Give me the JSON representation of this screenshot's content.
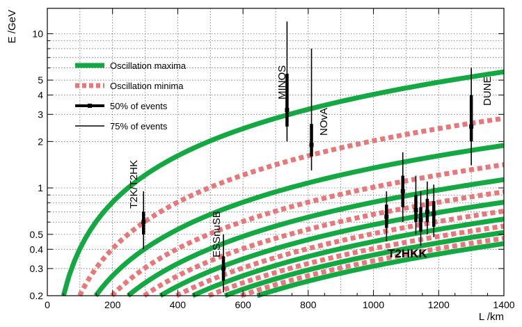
{
  "chart_data": {
    "type": "line",
    "xlabel": "L /km",
    "ylabel": "E /GeV",
    "xlim": [
      0,
      1400
    ],
    "ylim": [
      0.2,
      15
    ],
    "yscale": "log",
    "grid": true,
    "legend_position": "top-left",
    "x_ticks": [
      "0",
      "200",
      "400",
      "600",
      "800",
      "1000",
      "1200",
      "1400"
    ],
    "y_ticks": [
      "0.2",
      "0.3",
      "0.4",
      "0.5",
      "1",
      "2",
      "3",
      "4",
      "5",
      "10"
    ],
    "colors": {
      "maxima": "#14a843",
      "minima": "#e8777a",
      "events": "#000000"
    },
    "series": [
      {
        "name": "Oscillation maxima",
        "kind": "maxima",
        "style": "solid",
        "formula": "E = 2.538 * 0.0025 * L / ((2n-1) * pi/2)",
        "n": [
          1,
          2,
          3,
          4,
          5,
          6,
          7
        ]
      },
      {
        "name": "Oscillation minima",
        "kind": "minima",
        "style": "dotted",
        "formula": "E = 2.538 * 0.0025 * L / (n * pi)",
        "n": [
          1,
          2,
          3,
          4,
          5,
          6
        ]
      }
    ],
    "legend": [
      {
        "label": "Oscillation maxima",
        "kind": "maxima"
      },
      {
        "label": "Oscillation minima",
        "kind": "minima"
      },
      {
        "label": "50% of events",
        "kind": "thick"
      },
      {
        "label": "75% of events",
        "kind": "thin"
      }
    ],
    "experiments": [
      {
        "name": "T2K/T2HK",
        "L": 295,
        "center": 0.6,
        "e50": [
          0.5,
          0.7
        ],
        "e75": [
          0.4,
          0.95
        ]
      },
      {
        "name": "ESSnuSB",
        "L": 540,
        "center": 0.3,
        "e50": [
          0.25,
          0.36
        ],
        "e75": [
          0.21,
          0.5
        ]
      },
      {
        "name": "MINOS",
        "L": 735,
        "center": 3.2,
        "e50": [
          2.5,
          5.5
        ],
        "e75": [
          2.0,
          12
        ]
      },
      {
        "name": "NOvA",
        "L": 810,
        "center": 1.9,
        "e50": [
          1.6,
          2.6
        ],
        "e75": [
          1.3,
          8
        ]
      },
      {
        "name": "DUNE",
        "L": 1300,
        "center": 2.5,
        "e50": [
          2.0,
          4.0
        ],
        "e75": [
          1.4,
          6.0
        ]
      }
    ],
    "t2hkk": {
      "label": "T2HKK",
      "points": [
        {
          "L": 1040,
          "center": 0.65,
          "e50": [
            0.55,
            0.78
          ],
          "e75": [
            0.45,
            0.95
          ]
        },
        {
          "L": 1090,
          "center": 0.95,
          "e50": [
            0.75,
            1.2
          ],
          "e75": [
            0.6,
            1.7
          ]
        },
        {
          "L": 1130,
          "center": 0.72,
          "e50": [
            0.6,
            0.9
          ],
          "e75": [
            0.5,
            1.2
          ]
        },
        {
          "L": 1145,
          "center": 0.62,
          "e50": [
            0.52,
            0.75
          ],
          "e75": [
            0.42,
            0.95
          ]
        },
        {
          "L": 1165,
          "center": 0.7,
          "e50": [
            0.6,
            0.85
          ],
          "e75": [
            0.5,
            1.1
          ]
        },
        {
          "L": 1185,
          "center": 0.68,
          "e50": [
            0.56,
            0.82
          ],
          "e75": [
            0.48,
            1.05
          ]
        }
      ]
    }
  }
}
